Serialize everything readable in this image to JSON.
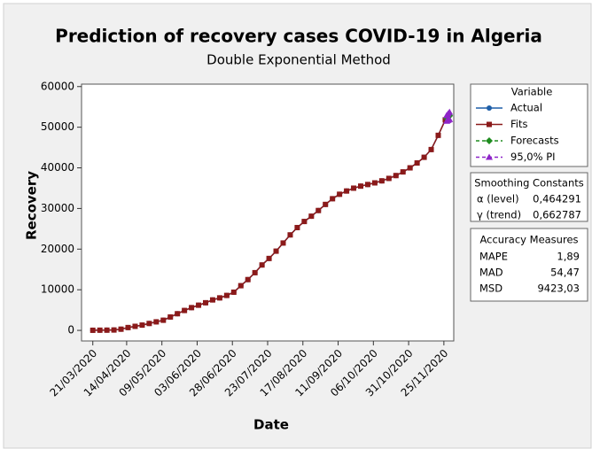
{
  "chart_data": {
    "type": "line",
    "title": "Prediction of recovery cases COVID-19 in Algeria",
    "subtitle": "Double Exponential Method",
    "x_label": "Date",
    "y_label": "Recovery",
    "legend_title": "Variable",
    "x": [
      "21/03/2020",
      "26/03/2020",
      "31/03/2020",
      "05/04/2020",
      "10/04/2020",
      "15/04/2020",
      "20/04/2020",
      "25/04/2020",
      "30/04/2020",
      "05/05/2020",
      "10/05/2020",
      "15/05/2020",
      "20/05/2020",
      "25/05/2020",
      "30/05/2020",
      "04/06/2020",
      "09/06/2020",
      "14/06/2020",
      "19/06/2020",
      "24/06/2020",
      "29/06/2020",
      "04/07/2020",
      "09/07/2020",
      "14/07/2020",
      "19/07/2020",
      "24/07/2020",
      "29/07/2020",
      "03/08/2020",
      "08/08/2020",
      "13/08/2020",
      "18/08/2020",
      "23/08/2020",
      "28/08/2020",
      "02/09/2020",
      "07/09/2020",
      "12/09/2020",
      "17/09/2020",
      "22/09/2020",
      "27/09/2020",
      "02/10/2020",
      "07/10/2020",
      "12/10/2020",
      "17/10/2020",
      "22/10/2020",
      "27/10/2020",
      "01/11/2020",
      "06/11/2020",
      "11/11/2020",
      "16/11/2020",
      "21/11/2020",
      "26/11/2020"
    ],
    "series": [
      {
        "name": "Actual",
        "color": "#1f5fa8",
        "marker": "circle",
        "values": [
          30,
          50,
          60,
          100,
          300,
          700,
          1000,
          1300,
          1700,
          2100,
          2500,
          3300,
          4100,
          4900,
          5600,
          6200,
          6800,
          7500,
          8000,
          8600,
          9400,
          11000,
          12500,
          14200,
          16100,
          17700,
          19500,
          21500,
          23500,
          25300,
          26800,
          28100,
          29500,
          31000,
          32400,
          33500,
          34300,
          35000,
          35500,
          35900,
          36300,
          36800,
          37400,
          38100,
          39000,
          40000,
          41200,
          42600,
          44500,
          48000,
          51800
        ]
      },
      {
        "name": "Fits",
        "color": "#8b1a1a",
        "marker": "square",
        "values": [
          30,
          50,
          60,
          100,
          300,
          700,
          1000,
          1300,
          1700,
          2100,
          2500,
          3300,
          4100,
          4900,
          5600,
          6200,
          6800,
          7500,
          8000,
          8600,
          9400,
          11000,
          12500,
          14200,
          16100,
          17700,
          19500,
          21500,
          23500,
          25300,
          26800,
          28100,
          29500,
          31000,
          32400,
          33500,
          34300,
          35000,
          35500,
          35900,
          36300,
          36800,
          37400,
          38100,
          39000,
          40000,
          41200,
          42600,
          44500,
          48000,
          51800
        ]
      },
      {
        "name": "Forecasts",
        "color": "#1e8c1e",
        "marker": "diamond",
        "dash": true,
        "x": [
          "27/11/2020",
          "28/11/2020",
          "29/11/2020"
        ],
        "values": [
          52200,
          52500,
          52800
        ]
      },
      {
        "name": "95,0% PI",
        "color": "#8e24c8",
        "marker": "triangle",
        "dash": true,
        "x": [
          "27/11/2020",
          "28/11/2020",
          "29/11/2020"
        ],
        "values": [
          52900,
          53300,
          53700
        ],
        "lower": [
          51500,
          51700,
          51900
        ]
      }
    ],
    "xlim": [
      "13/03/2020",
      "02/12/2020"
    ],
    "xticks": [
      "21/03/2020",
      "14/04/2020",
      "09/05/2020",
      "03/06/2020",
      "28/06/2020",
      "23/07/2020",
      "17/08/2020",
      "11/09/2020",
      "06/10/2020",
      "31/10/2020",
      "25/11/2020"
    ],
    "ylim": [
      -2600,
      60600
    ],
    "yticks": [
      0,
      10000,
      20000,
      30000,
      40000,
      50000,
      60000
    ],
    "smoothing": {
      "title": "Smoothing Constants",
      "rows": [
        [
          "α (level)",
          "0,464291"
        ],
        [
          "γ (trend)",
          "0,662787"
        ]
      ]
    },
    "accuracy": {
      "title": "Accuracy Measures",
      "rows": [
        [
          "MAPE",
          "1,89"
        ],
        [
          "MAD",
          "54,47"
        ],
        [
          "MSD",
          "9423,03"
        ]
      ]
    }
  }
}
